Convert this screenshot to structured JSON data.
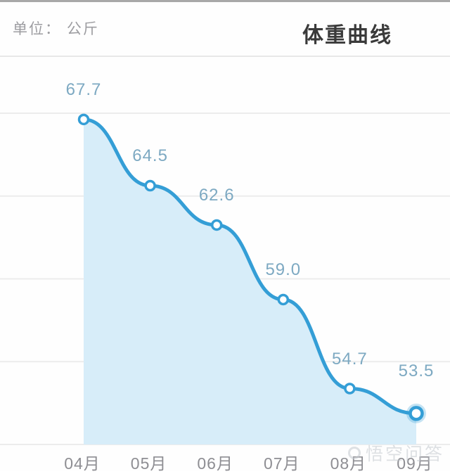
{
  "header": {
    "unit_label": "单位： 公斤",
    "title": "体重曲线"
  },
  "watermark": {
    "text": "悟空问答"
  },
  "colors": {
    "line": "#349ed6",
    "fill": "#d7edf9",
    "halo": "rgba(52,158,214,0.28)",
    "marker_fill": "#ffffff",
    "grid": "#ececec",
    "value_label": "#7da9c2",
    "axis_label": "#8e8e93",
    "title": "#3a3a3a",
    "unit": "#9d9da1"
  },
  "chart_data": {
    "type": "line",
    "title": "体重曲线",
    "unit": "公斤",
    "xlabel": "",
    "ylabel": "",
    "categories": [
      "04月",
      "05月",
      "06月",
      "07月",
      "08月",
      "09月"
    ],
    "values": [
      67.7,
      64.5,
      62.6,
      59.0,
      54.7,
      53.5
    ],
    "value_labels": [
      "67.7",
      "64.5",
      "62.6",
      "59.0",
      "54.7",
      "53.5"
    ],
    "ylim": [
      52,
      68
    ],
    "grid_values": [
      52,
      56,
      60,
      64,
      68
    ],
    "grid": "horizontal",
    "legend": "none",
    "area_fill": true,
    "smooth": true,
    "highlight_last_point": true
  }
}
